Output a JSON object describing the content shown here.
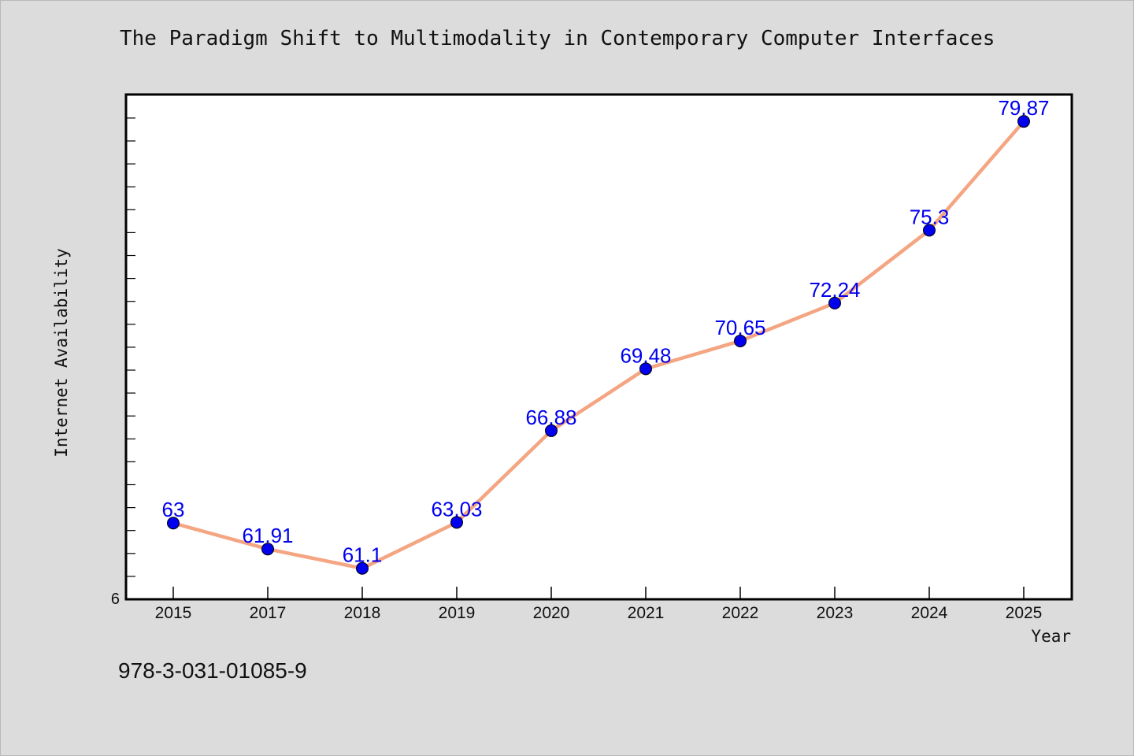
{
  "chart_data": {
    "type": "line",
    "title": "The Paradigm Shift to Multimodality in Contemporary Computer Interfaces",
    "xlabel": "Year",
    "ylabel": "Internet Availability",
    "categories": [
      "2015",
      "2017",
      "2018",
      "2019",
      "2020",
      "2021",
      "2022",
      "2023",
      "2024",
      "2025"
    ],
    "series": [
      {
        "values": [
          63,
          61.91,
          61.1,
          63.03,
          66.88,
          69.48,
          70.65,
          72.24,
          75.3,
          79.87
        ]
      }
    ],
    "y_tick_labels": [
      "6"
    ],
    "ylim": [
      59.8,
      81
    ],
    "grid": false,
    "line_color": "#f4a582",
    "marker_color": "#0000ee",
    "label_color": "#0000ee"
  },
  "footnote": "978-3-031-01085-9"
}
